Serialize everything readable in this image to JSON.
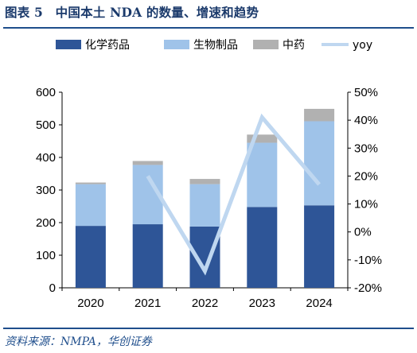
{
  "figure": {
    "title": "图表 5　中国本土 NDA 的数量、增速和趋势",
    "source": "资料来源：NMPA，华创证券"
  },
  "colors": {
    "chem": "#2e5597",
    "bio": "#9fc3e9",
    "tcm": "#b1b1b1",
    "yoy": "#bfd7f0",
    "rule": "#1f4e8c",
    "title": "#1b3a6b"
  },
  "chart_data": {
    "type": "bar",
    "stacked": true,
    "title": "",
    "categories": [
      "2020",
      "2021",
      "2022",
      "2023",
      "2024"
    ],
    "series": [
      {
        "name": "化学药品",
        "values": [
          190,
          195,
          188,
          248,
          253
        ]
      },
      {
        "name": "生物制品",
        "values": [
          128,
          182,
          130,
          197,
          258
        ]
      },
      {
        "name": "中药",
        "values": [
          5,
          12,
          16,
          25,
          38
        ]
      }
    ],
    "line_series": {
      "name": "yoy",
      "axis": "right",
      "values": [
        null,
        0.2,
        -0.14,
        0.41,
        0.17
      ]
    },
    "ylim": [
      0,
      600
    ],
    "yticks": [
      "0",
      "100",
      "200",
      "300",
      "400",
      "500",
      "600"
    ],
    "y2lim": [
      -0.2,
      0.5
    ],
    "y2ticks": [
      "-20%",
      "-10%",
      "0%",
      "10%",
      "20%",
      "30%",
      "40%",
      "50%"
    ],
    "legend": "top",
    "grid": false
  }
}
